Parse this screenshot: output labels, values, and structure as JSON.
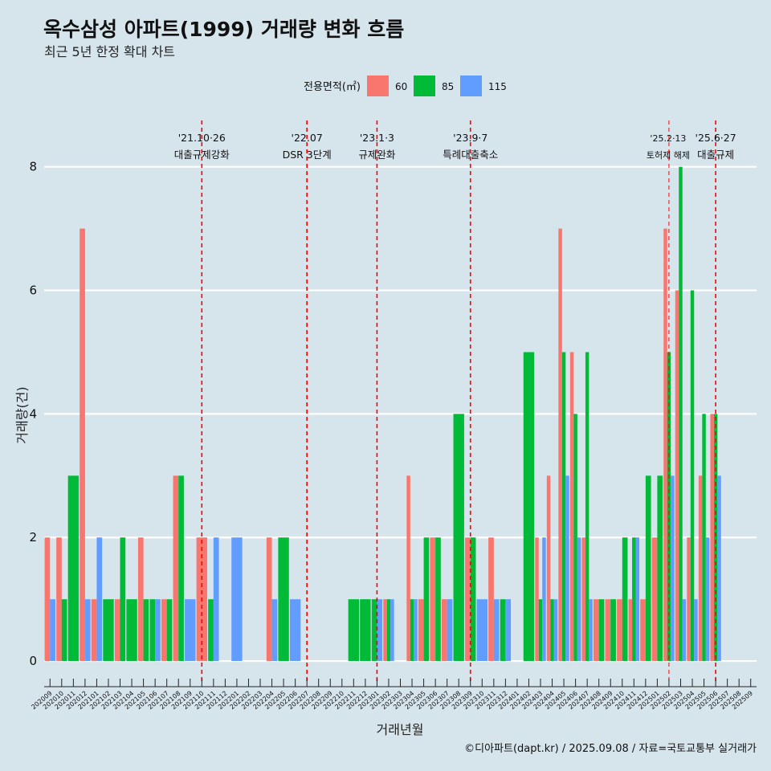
{
  "chart_data": {
    "type": "bar",
    "title": "옥수삼성 아파트(1999) 거래량 변화 흐름",
    "subtitle": "최근 5년 한정 확대 차트",
    "xlabel": "거래년월",
    "ylabel": "거래량(건)",
    "ylim": [
      -0.35,
      8.75
    ],
    "yticks": [
      0,
      2,
      4,
      6,
      8
    ],
    "legend": {
      "title": "전용면적(㎡)",
      "position": "top",
      "items": [
        {
          "label": "60",
          "color": "#f8766d"
        },
        {
          "label": "85",
          "color": "#00ba38"
        },
        {
          "label": "115",
          "color": "#619cff"
        }
      ]
    },
    "categories": [
      "202009",
      "202010",
      "202011",
      "202012",
      "202101",
      "202102",
      "202103",
      "202104",
      "202105",
      "202106",
      "202107",
      "202108",
      "202109",
      "202110",
      "202111",
      "202112",
      "202201",
      "202202",
      "202203",
      "202204",
      "202205",
      "202206",
      "202207",
      "202208",
      "202209",
      "202210",
      "202211",
      "202212",
      "202301",
      "202302",
      "202303",
      "202304",
      "202305",
      "202306",
      "202307",
      "202308",
      "202309",
      "202310",
      "202311",
      "202312",
      "202401",
      "202402",
      "202403",
      "202404",
      "202405",
      "202406",
      "202407",
      "202408",
      "202409",
      "202410",
      "202411",
      "202412",
      "202501",
      "202502",
      "202503",
      "202504",
      "202505",
      "202506",
      "202507",
      "202508",
      "202509"
    ],
    "series": [
      {
        "name": "60",
        "color": "#f8766d",
        "values": [
          2,
          2,
          0,
          7,
          1,
          0,
          1,
          0,
          2,
          0,
          1,
          3,
          0,
          2,
          0,
          0,
          0,
          0,
          0,
          2,
          0,
          0,
          0,
          0,
          0,
          0,
          0,
          0,
          0,
          1,
          0,
          3,
          1,
          2,
          1,
          0,
          2,
          0,
          2,
          0,
          0,
          0,
          2,
          3,
          7,
          5,
          2,
          1,
          1,
          1,
          1,
          1,
          2,
          7,
          6,
          2,
          3,
          4,
          0,
          0,
          0
        ]
      },
      {
        "name": "85",
        "color": "#00ba38",
        "values": [
          0,
          1,
          3,
          0,
          0,
          1,
          2,
          1,
          1,
          1,
          1,
          3,
          0,
          0,
          1,
          0,
          0,
          0,
          0,
          0,
          2,
          0,
          0,
          0,
          0,
          0,
          1,
          1,
          1,
          1,
          0,
          1,
          2,
          2,
          0,
          4,
          2,
          0,
          0,
          1,
          0,
          5,
          1,
          1,
          5,
          4,
          5,
          1,
          1,
          2,
          2,
          3,
          3,
          5,
          8,
          6,
          4,
          4,
          0,
          0,
          0
        ]
      },
      {
        "name": "115",
        "color": "#619cff",
        "values": [
          1,
          0,
          0,
          1,
          2,
          0,
          0,
          0,
          0,
          1,
          0,
          0,
          1,
          0,
          2,
          0,
          2,
          0,
          0,
          1,
          0,
          1,
          0,
          0,
          0,
          0,
          0,
          0,
          1,
          1,
          0,
          1,
          0,
          0,
          1,
          0,
          0,
          1,
          1,
          1,
          0,
          0,
          2,
          1,
          3,
          2,
          1,
          0,
          0,
          0,
          2,
          0,
          0,
          3,
          1,
          1,
          2,
          3,
          0,
          0,
          0
        ]
      }
    ],
    "annotations": [
      {
        "category": "202110",
        "date": "'21.10·26",
        "label": "대출규제강화"
      },
      {
        "category": "202207",
        "date": "'22.07",
        "label": "DSR 3단계"
      },
      {
        "category": "202301",
        "date": "'23.1·3",
        "label": "규제완화"
      },
      {
        "category": "202309",
        "date": "'23.9·7",
        "label": "특례대출축소"
      },
      {
        "category": "202502",
        "date": "'25.2·13",
        "label": "토허제 해제"
      },
      {
        "category": "202506",
        "date": "'25.6·27",
        "label": "대출규제"
      }
    ],
    "caption": "©디아파트(dapt.kr) / 2025.09.08 / 자료=국토교통부 실거래가"
  }
}
